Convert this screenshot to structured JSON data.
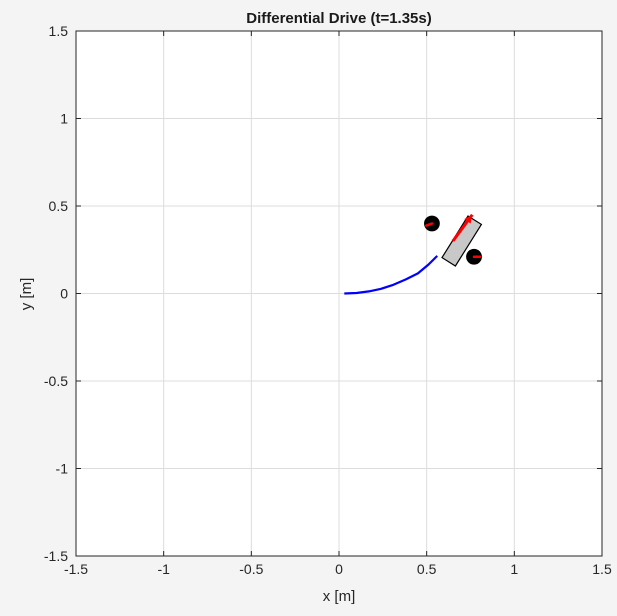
{
  "chart_data": {
    "type": "line",
    "title": "Differential Drive (t=1.35s)",
    "xlabel": "x [m]",
    "ylabel": "y [m]",
    "xlim": [
      -1.5,
      1.5
    ],
    "ylim": [
      -1.5,
      1.5
    ],
    "grid": true,
    "x_ticks": [
      -1.5,
      -1,
      -0.5,
      0,
      0.5,
      1,
      1.5
    ],
    "y_ticks": [
      -1.5,
      -1,
      -0.5,
      0,
      0.5,
      1,
      1.5
    ],
    "x_tick_labels": [
      "-1.5",
      "-1",
      "-0.5",
      "0",
      "0.5",
      "1",
      "1.5"
    ],
    "y_tick_labels": [
      "-1.5",
      "-1",
      "-0.5",
      "0",
      "0.5",
      "1",
      "1.5"
    ],
    "series": [
      {
        "name": "trajectory",
        "color": "#0000ff",
        "x": [
          0.03,
          0.1,
          0.17,
          0.24,
          0.31,
          0.38,
          0.45,
          0.51,
          0.54,
          0.56
        ],
        "y": [
          0.0,
          0.003,
          0.012,
          0.027,
          0.05,
          0.08,
          0.115,
          0.165,
          0.195,
          0.215
        ]
      }
    ],
    "robot": {
      "body_center": [
        0.7,
        0.3
      ],
      "body_length": 0.28,
      "body_width": 0.09,
      "heading_deg": 58,
      "body_color": "#c8c8c8",
      "heading_arrow": {
        "from": [
          0.65,
          0.3
        ],
        "to": [
          0.76,
          0.45
        ],
        "color": "#ff0000"
      },
      "wheels": [
        {
          "name": "left-wheel",
          "center": [
            0.53,
            0.4
          ],
          "radius": 0.045,
          "mark_angle_deg": 200
        },
        {
          "name": "right-wheel",
          "center": [
            0.77,
            0.21
          ],
          "radius": 0.045,
          "mark_angle_deg": 0
        }
      ],
      "wheel_color": "#000000",
      "mark_color": "#ff0000"
    }
  }
}
